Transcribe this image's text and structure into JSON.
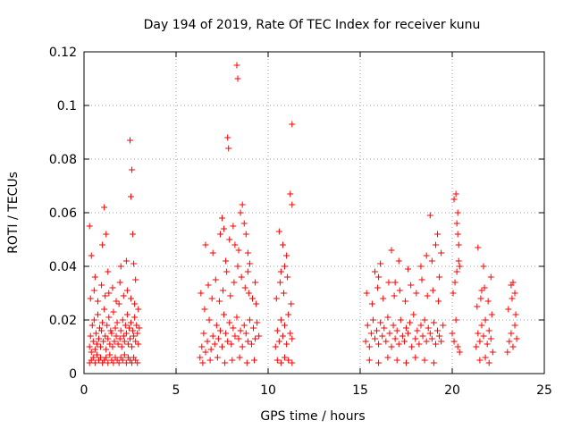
{
  "chart_data": {
    "type": "scatter",
    "title": "Day 194 of 2019, Rate Of TEC Index for receiver kunu",
    "xlabel": "GPS time / hours",
    "ylabel": "ROTI / TECUs",
    "xlim": [
      0,
      25
    ],
    "ylim": [
      0,
      0.12
    ],
    "xticks": [
      0,
      5,
      10,
      15,
      20,
      25
    ],
    "xtick_labels": [
      "0",
      "5",
      "10",
      "15",
      "20",
      "25"
    ],
    "yticks": [
      0,
      0.02,
      0.04,
      0.06,
      0.08,
      0.1,
      0.12
    ],
    "ytick_labels": [
      "0",
      "0.02",
      "0.04",
      "0.06",
      "0.08",
      "0.1",
      "0.12"
    ],
    "grid": true,
    "marker": "+",
    "color": "#ff0000",
    "series": [
      {
        "name": "ROTI",
        "x": [
          0.3,
          0.35,
          0.4,
          0.45,
          0.5,
          0.55,
          0.6,
          0.65,
          0.7,
          0.75,
          0.8,
          0.85,
          0.9,
          0.95,
          1.0,
          1.05,
          1.1,
          1.15,
          1.2,
          1.25,
          1.3,
          1.35,
          1.4,
          1.45,
          1.5,
          1.55,
          1.6,
          1.65,
          1.7,
          1.75,
          1.8,
          1.85,
          1.9,
          1.95,
          2.0,
          2.05,
          2.1,
          2.15,
          2.2,
          2.25,
          2.3,
          2.35,
          2.4,
          2.45,
          2.5,
          2.55,
          2.6,
          2.65,
          2.7,
          2.75,
          2.8,
          2.85,
          2.9,
          2.95,
          3.0,
          0.3,
          0.4,
          0.5,
          0.6,
          0.7,
          0.8,
          0.9,
          1.0,
          1.1,
          1.2,
          1.3,
          1.4,
          1.5,
          1.6,
          1.7,
          1.8,
          1.9,
          2.0,
          2.1,
          2.2,
          2.3,
          2.4,
          2.5,
          2.6,
          2.7,
          2.8,
          2.9,
          0.35,
          0.55,
          0.75,
          0.95,
          1.15,
          1.35,
          1.55,
          1.75,
          1.95,
          2.15,
          2.35,
          2.55,
          2.75,
          2.95,
          0.3,
          0.4,
          1.1,
          1.2,
          2.5,
          2.6,
          2.55,
          2.65,
          2.7,
          0.6,
          1.0,
          1.3,
          2.0,
          2.3,
          2.8,
          6.3,
          6.4,
          6.5,
          6.6,
          6.7,
          6.8,
          6.9,
          7.0,
          7.1,
          7.2,
          7.3,
          7.4,
          7.5,
          7.6,
          7.7,
          7.8,
          7.9,
          8.0,
          8.1,
          8.2,
          8.3,
          8.4,
          8.5,
          8.6,
          8.7,
          8.8,
          8.9,
          9.0,
          9.1,
          9.2,
          9.3,
          9.4,
          9.5,
          6.35,
          6.55,
          6.75,
          6.95,
          7.15,
          7.35,
          7.55,
          7.75,
          7.95,
          8.15,
          8.35,
          8.55,
          8.75,
          8.95,
          9.15,
          9.35,
          6.45,
          6.85,
          7.25,
          7.65,
          8.05,
          8.45,
          8.85,
          9.25,
          7.5,
          7.6,
          7.9,
          8.2,
          8.5,
          8.6,
          8.7,
          8.8,
          8.9,
          9.0,
          7.8,
          7.85,
          8.3,
          8.35,
          6.6,
          7.0,
          7.4,
          7.7,
          8.1,
          8.4,
          8.9,
          9.3,
          10.4,
          10.5,
          10.6,
          10.7,
          10.8,
          10.9,
          11.0,
          11.1,
          11.2,
          11.3,
          10.45,
          10.65,
          10.85,
          11.05,
          11.25,
          10.5,
          10.7,
          10.9,
          11.1,
          11.3,
          10.6,
          10.8,
          11.0,
          11.2,
          11.3,
          11.3,
          10.9,
          10.7,
          15.3,
          15.4,
          15.5,
          15.6,
          15.7,
          15.8,
          15.9,
          16.0,
          16.1,
          16.2,
          16.3,
          16.4,
          16.5,
          16.6,
          16.7,
          16.8,
          16.9,
          17.0,
          17.1,
          17.2,
          17.3,
          17.4,
          17.5,
          17.6,
          17.7,
          17.8,
          17.9,
          18.0,
          18.1,
          18.2,
          18.3,
          18.4,
          18.5,
          18.6,
          18.7,
          18.8,
          18.9,
          19.0,
          19.1,
          19.2,
          19.3,
          19.4,
          19.5,
          15.35,
          15.65,
          15.95,
          16.25,
          16.55,
          16.85,
          17.15,
          17.45,
          17.75,
          18.05,
          18.35,
          18.65,
          18.95,
          19.25,
          15.5,
          16.0,
          16.5,
          17.0,
          17.5,
          18.0,
          18.5,
          19.0,
          15.8,
          16.1,
          16.7,
          17.1,
          17.6,
          18.3,
          18.6,
          18.9,
          19.1,
          19.3,
          16.0,
          16.9,
          18.8,
          19.2,
          19.4,
          20.0,
          20.1,
          20.2,
          20.3,
          20.4,
          20.05,
          20.15,
          20.25,
          20.35,
          20.2,
          20.3,
          20.25,
          20.3,
          20.35,
          20.1,
          20.4,
          21.3,
          21.4,
          21.5,
          21.6,
          21.7,
          21.8,
          21.9,
          22.0,
          22.1,
          22.2,
          21.35,
          21.55,
          21.75,
          21.95,
          22.15,
          21.5,
          21.8,
          22.0,
          21.4,
          21.7,
          22.1,
          21.6,
          23.0,
          23.1,
          23.2,
          23.3,
          23.4,
          23.5,
          23.05,
          23.25,
          23.45,
          23.2,
          23.4,
          23.3
        ],
        "y": [
          0.01,
          0.014,
          0.008,
          0.018,
          0.012,
          0.02,
          0.009,
          0.015,
          0.011,
          0.022,
          0.013,
          0.017,
          0.01,
          0.016,
          0.019,
          0.012,
          0.024,
          0.014,
          0.009,
          0.018,
          0.013,
          0.021,
          0.011,
          0.016,
          0.015,
          0.01,
          0.023,
          0.012,
          0.017,
          0.014,
          0.019,
          0.011,
          0.026,
          0.013,
          0.016,
          0.01,
          0.02,
          0.014,
          0.012,
          0.018,
          0.015,
          0.022,
          0.011,
          0.017,
          0.013,
          0.019,
          0.01,
          0.016,
          0.014,
          0.021,
          0.012,
          0.018,
          0.015,
          0.011,
          0.017,
          0.004,
          0.005,
          0.006,
          0.004,
          0.007,
          0.005,
          0.006,
          0.004,
          0.005,
          0.006,
          0.004,
          0.007,
          0.005,
          0.004,
          0.006,
          0.005,
          0.004,
          0.006,
          0.005,
          0.007,
          0.004,
          0.006,
          0.005,
          0.004,
          0.006,
          0.005,
          0.004,
          0.028,
          0.031,
          0.027,
          0.033,
          0.029,
          0.03,
          0.032,
          0.027,
          0.034,
          0.029,
          0.031,
          0.028,
          0.026,
          0.024,
          0.055,
          0.044,
          0.062,
          0.052,
          0.087,
          0.076,
          0.066,
          0.052,
          0.041,
          0.036,
          0.048,
          0.038,
          0.04,
          0.042,
          0.035,
          0.006,
          0.01,
          0.015,
          0.008,
          0.012,
          0.02,
          0.009,
          0.014,
          0.011,
          0.018,
          0.013,
          0.016,
          0.01,
          0.022,
          0.015,
          0.012,
          0.019,
          0.011,
          0.017,
          0.014,
          0.021,
          0.013,
          0.016,
          0.01,
          0.018,
          0.015,
          0.012,
          0.02,
          0.011,
          0.017,
          0.013,
          0.019,
          0.014,
          0.03,
          0.024,
          0.033,
          0.028,
          0.035,
          0.027,
          0.031,
          0.038,
          0.029,
          0.034,
          0.04,
          0.036,
          0.032,
          0.03,
          0.028,
          0.026,
          0.004,
          0.005,
          0.006,
          0.004,
          0.005,
          0.006,
          0.004,
          0.005,
          0.058,
          0.054,
          0.05,
          0.048,
          0.06,
          0.063,
          0.056,
          0.052,
          0.045,
          0.041,
          0.088,
          0.084,
          0.115,
          0.11,
          0.048,
          0.045,
          0.052,
          0.042,
          0.055,
          0.046,
          0.038,
          0.034,
          0.01,
          0.016,
          0.012,
          0.02,
          0.014,
          0.018,
          0.011,
          0.022,
          0.015,
          0.013,
          0.028,
          0.034,
          0.03,
          0.036,
          0.026,
          0.005,
          0.004,
          0.006,
          0.005,
          0.004,
          0.053,
          0.048,
          0.044,
          0.067,
          0.063,
          0.093,
          0.04,
          0.038,
          0.012,
          0.018,
          0.01,
          0.015,
          0.02,
          0.013,
          0.016,
          0.011,
          0.019,
          0.014,
          0.017,
          0.012,
          0.021,
          0.015,
          0.01,
          0.018,
          0.013,
          0.016,
          0.011,
          0.02,
          0.014,
          0.012,
          0.017,
          0.015,
          0.019,
          0.01,
          0.022,
          0.013,
          0.016,
          0.011,
          0.018,
          0.014,
          0.02,
          0.012,
          0.017,
          0.015,
          0.013,
          0.019,
          0.011,
          0.016,
          0.014,
          0.012,
          0.018,
          0.03,
          0.026,
          0.032,
          0.028,
          0.034,
          0.029,
          0.031,
          0.027,
          0.033,
          0.03,
          0.035,
          0.029,
          0.031,
          0.027,
          0.005,
          0.004,
          0.006,
          0.005,
          0.004,
          0.006,
          0.005,
          0.004,
          0.038,
          0.041,
          0.046,
          0.042,
          0.039,
          0.04,
          0.044,
          0.042,
          0.048,
          0.036,
          0.036,
          0.034,
          0.059,
          0.052,
          0.045,
          0.015,
          0.012,
          0.02,
          0.01,
          0.008,
          0.03,
          0.034,
          0.038,
          0.042,
          0.067,
          0.06,
          0.056,
          0.052,
          0.048,
          0.065,
          0.04,
          0.01,
          0.015,
          0.012,
          0.018,
          0.014,
          0.02,
          0.011,
          0.016,
          0.013,
          0.008,
          0.025,
          0.028,
          0.032,
          0.027,
          0.022,
          0.005,
          0.006,
          0.004,
          0.047,
          0.04,
          0.036,
          0.031,
          0.008,
          0.012,
          0.015,
          0.01,
          0.018,
          0.013,
          0.024,
          0.028,
          0.022,
          0.033,
          0.03,
          0.034
        ]
      }
    ]
  }
}
